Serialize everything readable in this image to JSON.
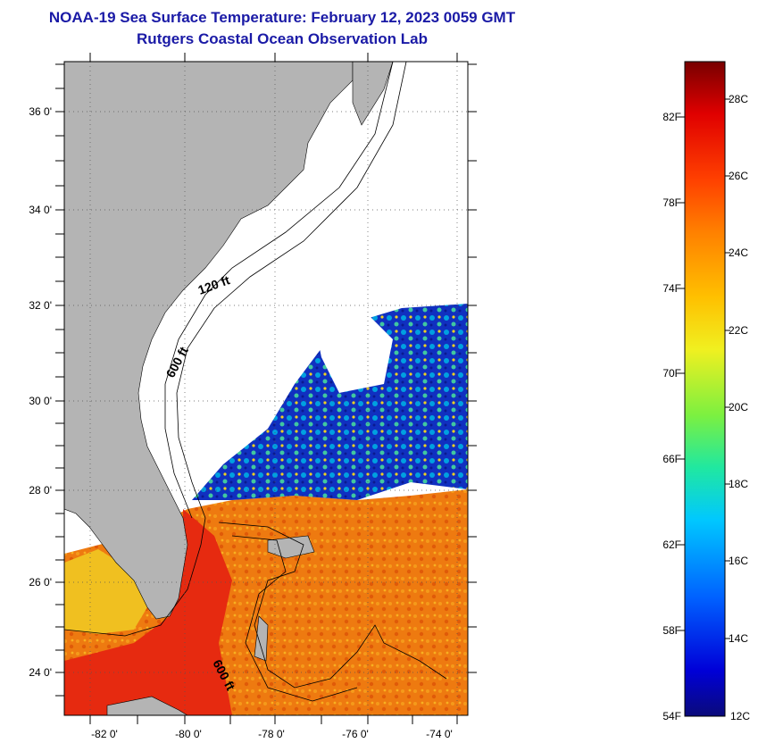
{
  "title": "NOAA-19 Sea Surface Temperature:  February 12, 2023 0059 GMT",
  "subtitle": "Rutgers Coastal Ocean Observation Lab",
  "map": {
    "lat_labels": [
      "36 0'",
      "34 0'",
      "32 0'",
      "30 0'",
      "28 0'",
      "26 0'",
      "24 0'"
    ],
    "lon_labels": [
      "-82 0'",
      "-80 0'",
      "-78 0'",
      "-76 0'",
      "-74 0'"
    ],
    "contour_labels": [
      "120 ft",
      "600 ft",
      "600 ft"
    ],
    "colors": {
      "land": "#b4b4b4",
      "cloud": "#ffffff",
      "frame": "#000000"
    }
  },
  "colorbar": {
    "fahrenheit_labels": [
      "82F",
      "78F",
      "74F",
      "70F",
      "66F",
      "62F",
      "58F",
      "54F"
    ],
    "celsius_labels": [
      "28C",
      "26C",
      "24C",
      "22C",
      "20C",
      "18C",
      "16C",
      "14C",
      "12C"
    ],
    "range_c": [
      12,
      29.5
    ]
  }
}
